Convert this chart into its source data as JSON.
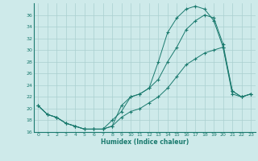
{
  "xlabel": "Humidex (Indice chaleur)",
  "background_color": "#ceeaea",
  "line_color": "#1a7a6e",
  "grid_color": "#aacfcf",
  "xlim": [
    -0.5,
    23.5
  ],
  "ylim": [
    16,
    38
  ],
  "yticks": [
    16,
    18,
    20,
    22,
    24,
    26,
    28,
    30,
    32,
    34,
    36
  ],
  "xticks": [
    0,
    1,
    2,
    3,
    4,
    5,
    6,
    7,
    8,
    9,
    10,
    11,
    12,
    13,
    14,
    15,
    16,
    17,
    18,
    19,
    20,
    21,
    22,
    23
  ],
  "series1_x": [
    0,
    1,
    2,
    3,
    4,
    5,
    6,
    7,
    8,
    9,
    10,
    11,
    12,
    13,
    14,
    15,
    16,
    17,
    18,
    19,
    20,
    21,
    22,
    23
  ],
  "series1_y": [
    20.5,
    19.0,
    18.5,
    17.5,
    17.0,
    16.5,
    16.5,
    16.5,
    17.0,
    20.5,
    22.0,
    22.5,
    23.5,
    28.0,
    33.0,
    35.5,
    37.0,
    37.5,
    37.0,
    35.0,
    30.5,
    23.0,
    22.0,
    22.5
  ],
  "series2_x": [
    0,
    1,
    2,
    3,
    4,
    5,
    6,
    7,
    8,
    9,
    10,
    11,
    12,
    13,
    14,
    15,
    16,
    17,
    18,
    19,
    20,
    21,
    22,
    23
  ],
  "series2_y": [
    20.5,
    19.0,
    18.5,
    17.5,
    17.0,
    16.5,
    16.5,
    16.5,
    18.0,
    19.5,
    22.0,
    22.5,
    23.5,
    25.0,
    28.0,
    30.5,
    33.5,
    35.0,
    36.0,
    35.5,
    31.0,
    23.0,
    22.0,
    22.5
  ],
  "series3_x": [
    0,
    1,
    2,
    3,
    4,
    5,
    6,
    7,
    8,
    9,
    10,
    11,
    12,
    13,
    14,
    15,
    16,
    17,
    18,
    19,
    20,
    21,
    22,
    23
  ],
  "series3_y": [
    20.5,
    19.0,
    18.5,
    17.5,
    17.0,
    16.5,
    16.5,
    16.5,
    17.0,
    18.5,
    19.5,
    20.0,
    21.0,
    22.0,
    23.5,
    25.5,
    27.5,
    28.5,
    29.5,
    30.0,
    30.5,
    22.5,
    22.0,
    22.5
  ]
}
